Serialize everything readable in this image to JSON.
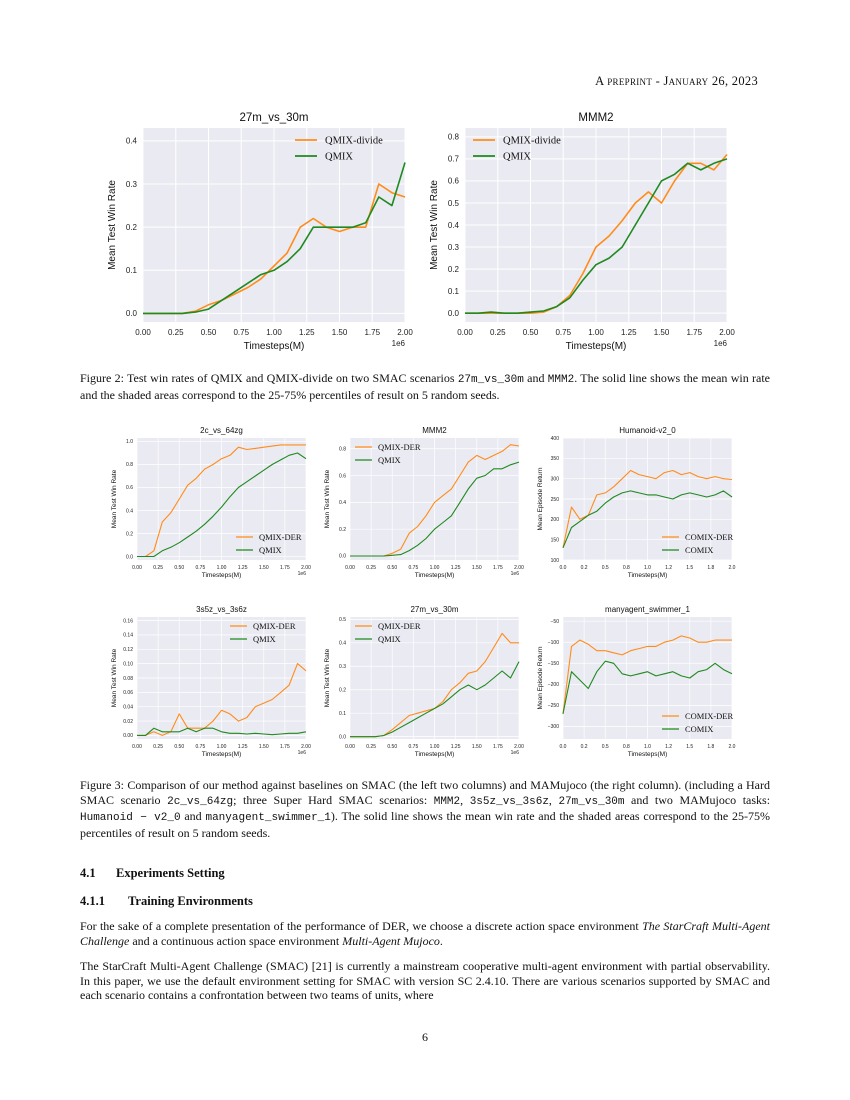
{
  "header": {
    "running_title": "A preprint - January 26, 2023"
  },
  "colors": {
    "plot_bg": "#eaeaf2",
    "grid": "#ffffff",
    "orange": "#ff8c1a",
    "green": "#1f8a1f"
  },
  "figure2": {
    "caption": [
      {
        "t": "Figure 2: Test win rates of QMIX and QMIX-divide on two SMAC scenarios "
      },
      {
        "t": "27m_vs_30m",
        "code": true
      },
      {
        "t": " and "
      },
      {
        "t": "MMM2",
        "code": true
      },
      {
        "t": ". The solid line shows the mean win rate and the shaded areas correspond to the 25-75% percentiles of result on 5 random seeds."
      }
    ]
  },
  "figure3": {
    "caption": [
      {
        "t": "Figure 3: Comparison of our method against baselines on SMAC (the left two columns) and MAMujoco (the right column). (including a Hard SMAC scenario "
      },
      {
        "t": "2c_vs_64zg",
        "code": true
      },
      {
        "t": "; three Super Hard SMAC scenarios: "
      },
      {
        "t": "MMM2",
        "code": true
      },
      {
        "t": ", "
      },
      {
        "t": "3s5z_vs_3s6z",
        "code": true
      },
      {
        "t": ", "
      },
      {
        "t": "27m_vs_30m",
        "code": true
      },
      {
        "t": " and two MAMujoco tasks: "
      },
      {
        "t": "Humanoid − v2_0",
        "code": true
      },
      {
        "t": " and "
      },
      {
        "t": "manyagent_swimmer_1",
        "code": true
      },
      {
        "t": "). The solid line shows the mean win rate and the shaded areas correspond to the 25-75% percentiles of result on 5 random seeds."
      }
    ]
  },
  "section": {
    "number": "4.1",
    "title": "Experiments Setting"
  },
  "subsection": {
    "number": "4.1.1",
    "title": "Training Environments"
  },
  "paragraphs": [
    [
      {
        "t": "For the sake of a complete presentation of the performance of DER, we choose a discrete action space environment "
      },
      {
        "t": "The StarCraft Multi-Agent Challenge",
        "em": true
      },
      {
        "t": " and a continuous action space environment "
      },
      {
        "t": "Multi-Agent Mujoco",
        "em": true
      },
      {
        "t": "."
      }
    ],
    [
      {
        "t": "The StarCraft Multi-Agent Challenge (SMAC) [21] is currently a mainstream cooperative multi-agent environment with partial observability. In this paper, we use the default environment setting for SMAC with version SC 2.4.10. There are various scenarios supported by SMAC and each scenario contains a confrontation between two teams of units, where"
      }
    ]
  ],
  "page_number": "6",
  "chart_data": [
    {
      "type": "line",
      "title": "27m_vs_30m",
      "xlabel": "Timesteps(M)",
      "ylabel": "Mean Test Win Rate",
      "x_offset_label": "1e6",
      "xlim": [
        0,
        2.0
      ],
      "ylim": [
        -0.02,
        0.43
      ],
      "xticks": [
        0,
        0.25,
        0.5,
        0.75,
        1.0,
        1.25,
        1.5,
        1.75,
        2.0
      ],
      "xticklabels": [
        "0.00",
        "0.25",
        "0.50",
        "0.75",
        "1.00",
        "1.25",
        "1.50",
        "1.75",
        "2.00"
      ],
      "yticks": [
        0,
        0.1,
        0.2,
        0.3,
        0.4
      ],
      "yticklabels": [
        "0.0",
        "0.1",
        "0.2",
        "0.3",
        "0.4"
      ],
      "grid": true,
      "legend": "top-right",
      "x": [
        0,
        0.1,
        0.2,
        0.3,
        0.4,
        0.5,
        0.6,
        0.7,
        0.8,
        0.9,
        1.0,
        1.1,
        1.2,
        1.3,
        1.4,
        1.5,
        1.6,
        1.7,
        1.8,
        1.9,
        2.0
      ],
      "series": [
        {
          "name": "QMIX-divide",
          "color": "orange",
          "values": [
            0,
            0,
            0,
            0,
            0.005,
            0.02,
            0.03,
            0.045,
            0.06,
            0.08,
            0.11,
            0.14,
            0.2,
            0.22,
            0.2,
            0.19,
            0.2,
            0.2,
            0.3,
            0.28,
            0.27
          ]
        },
        {
          "name": "QMIX",
          "color": "green",
          "values": [
            0,
            0,
            0,
            0,
            0.003,
            0.01,
            0.03,
            0.05,
            0.07,
            0.09,
            0.1,
            0.12,
            0.15,
            0.2,
            0.2,
            0.2,
            0.2,
            0.21,
            0.27,
            0.25,
            0.35
          ]
        }
      ]
    },
    {
      "type": "line",
      "title": "MMM2",
      "xlabel": "Timesteps(M)",
      "ylabel": "Mean Test Win Rate",
      "x_offset_label": "1e6",
      "xlim": [
        0,
        2.0
      ],
      "ylim": [
        -0.04,
        0.84
      ],
      "xticks": [
        0,
        0.25,
        0.5,
        0.75,
        1.0,
        1.25,
        1.5,
        1.75,
        2.0
      ],
      "xticklabels": [
        "0.00",
        "0.25",
        "0.50",
        "0.75",
        "1.00",
        "1.25",
        "1.50",
        "1.75",
        "2.00"
      ],
      "yticks": [
        0,
        0.1,
        0.2,
        0.3,
        0.4,
        0.5,
        0.6,
        0.7,
        0.8
      ],
      "yticklabels": [
        "0.0",
        "0.1",
        "0.2",
        "0.3",
        "0.4",
        "0.5",
        "0.6",
        "0.7",
        "0.8"
      ],
      "grid": true,
      "legend": "top-left",
      "x": [
        0,
        0.1,
        0.2,
        0.3,
        0.4,
        0.5,
        0.6,
        0.7,
        0.8,
        0.9,
        1.0,
        1.1,
        1.2,
        1.3,
        1.4,
        1.5,
        1.6,
        1.7,
        1.8,
        1.9,
        2.0
      ],
      "series": [
        {
          "name": "QMIX-divide",
          "color": "orange",
          "values": [
            0,
            0,
            0,
            0,
            0,
            0,
            0.005,
            0.03,
            0.08,
            0.18,
            0.3,
            0.35,
            0.42,
            0.5,
            0.55,
            0.5,
            0.6,
            0.68,
            0.68,
            0.65,
            0.72
          ]
        },
        {
          "name": "QMIX",
          "color": "green",
          "values": [
            0,
            0,
            0.005,
            0,
            0,
            0.005,
            0.01,
            0.03,
            0.07,
            0.15,
            0.22,
            0.25,
            0.3,
            0.4,
            0.5,
            0.6,
            0.63,
            0.68,
            0.65,
            0.68,
            0.7
          ]
        }
      ]
    },
    {
      "type": "line",
      "title": "2c_vs_64zg",
      "xlabel": "Timesteps(M)",
      "ylabel": "Mean Test Win Rate",
      "x_offset_label": "1e6",
      "xlim": [
        0,
        2.0
      ],
      "ylim": [
        -0.03,
        1.03
      ],
      "xticks": [
        0,
        0.25,
        0.5,
        0.75,
        1.0,
        1.25,
        1.5,
        1.75,
        2.0
      ],
      "xticklabels": [
        "0.00",
        "0.25",
        "0.50",
        "0.75",
        "1.00",
        "1.25",
        "1.50",
        "1.75",
        "2.00"
      ],
      "yticks": [
        0,
        0.2,
        0.4,
        0.6,
        0.8,
        1.0
      ],
      "yticklabels": [
        "0.0",
        "0.2",
        "0.4",
        "0.6",
        "0.8",
        "1.0"
      ],
      "grid": true,
      "legend": "bottom-right",
      "x": [
        0,
        0.1,
        0.2,
        0.3,
        0.4,
        0.5,
        0.6,
        0.7,
        0.8,
        0.9,
        1.0,
        1.1,
        1.2,
        1.3,
        1.4,
        1.5,
        1.6,
        1.7,
        1.8,
        1.9,
        2.0
      ],
      "series": [
        {
          "name": "QMIX-DER",
          "color": "orange",
          "values": [
            0,
            0,
            0.05,
            0.3,
            0.38,
            0.5,
            0.62,
            0.68,
            0.76,
            0.8,
            0.85,
            0.88,
            0.95,
            0.93,
            0.94,
            0.95,
            0.96,
            0.97,
            0.97,
            0.97,
            0.97
          ]
        },
        {
          "name": "QMIX",
          "color": "green",
          "values": [
            0,
            0,
            0,
            0.05,
            0.08,
            0.12,
            0.17,
            0.22,
            0.28,
            0.35,
            0.43,
            0.52,
            0.6,
            0.65,
            0.7,
            0.75,
            0.8,
            0.84,
            0.88,
            0.9,
            0.85
          ]
        }
      ]
    },
    {
      "type": "line",
      "title": "MMM2",
      "xlabel": "Timesteps(M)",
      "ylabel": "Mean Test Win Rate",
      "x_offset_label": "1e6",
      "xlim": [
        0,
        2.0
      ],
      "ylim": [
        -0.03,
        0.88
      ],
      "xticks": [
        0,
        0.25,
        0.5,
        0.75,
        1.0,
        1.25,
        1.5,
        1.75,
        2.0
      ],
      "xticklabels": [
        "0.00",
        "0.25",
        "0.50",
        "0.75",
        "1.00",
        "1.25",
        "1.50",
        "1.75",
        "2.00"
      ],
      "yticks": [
        0,
        0.2,
        0.4,
        0.6,
        0.8
      ],
      "yticklabels": [
        "0.0",
        "0.2",
        "0.4",
        "0.6",
        "0.8"
      ],
      "grid": true,
      "legend": "top-left",
      "x": [
        0,
        0.1,
        0.2,
        0.3,
        0.4,
        0.5,
        0.6,
        0.7,
        0.8,
        0.9,
        1.0,
        1.1,
        1.2,
        1.3,
        1.4,
        1.5,
        1.6,
        1.7,
        1.8,
        1.9,
        2.0
      ],
      "series": [
        {
          "name": "QMIX-DER",
          "color": "orange",
          "values": [
            0,
            0,
            0,
            0,
            0,
            0.02,
            0.05,
            0.17,
            0.22,
            0.3,
            0.4,
            0.45,
            0.5,
            0.6,
            0.7,
            0.75,
            0.72,
            0.75,
            0.78,
            0.83,
            0.82
          ]
        },
        {
          "name": "QMIX",
          "color": "green",
          "values": [
            0,
            0,
            0,
            0,
            0,
            0.005,
            0.01,
            0.04,
            0.08,
            0.13,
            0.2,
            0.25,
            0.3,
            0.4,
            0.5,
            0.58,
            0.6,
            0.65,
            0.65,
            0.68,
            0.7
          ]
        }
      ]
    },
    {
      "type": "line",
      "title": "Humanoid-v2_0",
      "xlabel": "Timesteps(M)",
      "ylabel": "Mean Episode Return",
      "x_offset_label": "",
      "xlim": [
        0,
        2.0
      ],
      "ylim": [
        100,
        400
      ],
      "xticks": [
        0,
        0.25,
        0.5,
        0.75,
        1.0,
        1.25,
        1.5,
        1.75,
        2.0
      ],
      "xticklabels": [
        "0.0",
        "0.2",
        "0.5",
        "0.8",
        "1.0",
        "1.2",
        "1.5",
        "1.8",
        "2.0"
      ],
      "yticks": [
        100,
        150,
        200,
        250,
        300,
        350,
        400
      ],
      "yticklabels": [
        "100",
        "150",
        "200",
        "250",
        "300",
        "350",
        "400"
      ],
      "grid": true,
      "legend": "bottom-right",
      "x": [
        0,
        0.1,
        0.2,
        0.3,
        0.4,
        0.5,
        0.6,
        0.7,
        0.8,
        0.9,
        1.0,
        1.1,
        1.2,
        1.3,
        1.4,
        1.5,
        1.6,
        1.7,
        1.8,
        1.9,
        2.0
      ],
      "series": [
        {
          "name": "COMIX-DER",
          "color": "orange",
          "values": [
            130,
            230,
            200,
            210,
            260,
            265,
            280,
            300,
            320,
            310,
            305,
            300,
            315,
            320,
            310,
            315,
            305,
            300,
            305,
            300,
            298
          ]
        },
        {
          "name": "COMIX",
          "color": "green",
          "values": [
            130,
            180,
            195,
            210,
            220,
            240,
            255,
            265,
            270,
            265,
            260,
            260,
            255,
            250,
            260,
            265,
            260,
            255,
            260,
            270,
            255
          ]
        }
      ]
    },
    {
      "type": "line",
      "title": "3s5z_vs_3s6z",
      "xlabel": "Timesteps(M)",
      "ylabel": "Mean Test Win Rate",
      "x_offset_label": "1e6",
      "xlim": [
        0,
        2.0
      ],
      "ylim": [
        -0.005,
        0.165
      ],
      "xticks": [
        0,
        0.25,
        0.5,
        0.75,
        1.0,
        1.25,
        1.5,
        1.75,
        2.0
      ],
      "xticklabels": [
        "0.00",
        "0.25",
        "0.50",
        "0.75",
        "1.00",
        "1.25",
        "1.50",
        "1.75",
        "2.00"
      ],
      "yticks": [
        0,
        0.02,
        0.04,
        0.06,
        0.08,
        0.1,
        0.12,
        0.14,
        0.16
      ],
      "yticklabels": [
        "0.00",
        "0.02",
        "0.04",
        "0.06",
        "0.08",
        "0.10",
        "0.12",
        "0.14",
        "0.16"
      ],
      "grid": true,
      "legend": "top-right",
      "x": [
        0,
        0.1,
        0.2,
        0.3,
        0.4,
        0.5,
        0.6,
        0.7,
        0.8,
        0.9,
        1.0,
        1.1,
        1.2,
        1.3,
        1.4,
        1.5,
        1.6,
        1.7,
        1.8,
        1.9,
        2.0
      ],
      "series": [
        {
          "name": "QMIX-DER",
          "color": "orange",
          "values": [
            0,
            0,
            0.005,
            0,
            0.005,
            0.03,
            0.01,
            0.01,
            0.01,
            0.02,
            0.035,
            0.03,
            0.02,
            0.025,
            0.04,
            0.045,
            0.05,
            0.06,
            0.07,
            0.1,
            0.09
          ]
        },
        {
          "name": "QMIX",
          "color": "green",
          "values": [
            0,
            0,
            0.01,
            0.005,
            0.005,
            0.005,
            0.01,
            0.005,
            0.01,
            0.01,
            0.005,
            0.003,
            0.003,
            0.002,
            0.003,
            0.002,
            0.001,
            0.002,
            0.003,
            0.003,
            0.005
          ]
        }
      ]
    },
    {
      "type": "line",
      "title": "27m_vs_30m",
      "xlabel": "Timesteps(M)",
      "ylabel": "Mean Test Win Rate",
      "x_offset_label": "1e6",
      "xlim": [
        0,
        2.0
      ],
      "ylim": [
        -0.01,
        0.51
      ],
      "xticks": [
        0,
        0.25,
        0.5,
        0.75,
        1.0,
        1.25,
        1.5,
        1.75,
        2.0
      ],
      "xticklabels": [
        "0.00",
        "0.25",
        "0.50",
        "0.75",
        "1.00",
        "1.25",
        "1.50",
        "1.75",
        "2.00"
      ],
      "yticks": [
        0,
        0.1,
        0.2,
        0.3,
        0.4,
        0.5
      ],
      "yticklabels": [
        "0.0",
        "0.1",
        "0.2",
        "0.3",
        "0.4",
        "0.5"
      ],
      "grid": true,
      "legend": "top-left",
      "x": [
        0,
        0.1,
        0.2,
        0.3,
        0.4,
        0.5,
        0.6,
        0.7,
        0.8,
        0.9,
        1.0,
        1.1,
        1.2,
        1.3,
        1.4,
        1.5,
        1.6,
        1.7,
        1.8,
        1.9,
        2.0
      ],
      "series": [
        {
          "name": "QMIX-DER",
          "color": "orange",
          "values": [
            0,
            0,
            0,
            0,
            0.005,
            0.03,
            0.06,
            0.09,
            0.1,
            0.11,
            0.12,
            0.15,
            0.2,
            0.23,
            0.27,
            0.28,
            0.32,
            0.38,
            0.44,
            0.4,
            0.4
          ]
        },
        {
          "name": "QMIX",
          "color": "green",
          "values": [
            0,
            0,
            0,
            0,
            0.005,
            0.02,
            0.04,
            0.06,
            0.08,
            0.1,
            0.12,
            0.14,
            0.17,
            0.2,
            0.22,
            0.2,
            0.22,
            0.25,
            0.28,
            0.25,
            0.32
          ]
        }
      ]
    },
    {
      "type": "line",
      "title": "manyagent_swimmer_1",
      "xlabel": "Timesteps(M)",
      "ylabel": "Mean Episode Return",
      "x_offset_label": "",
      "xlim": [
        0,
        2.0
      ],
      "ylim": [
        -330,
        -40
      ],
      "xticks": [
        0,
        0.25,
        0.5,
        0.75,
        1.0,
        1.25,
        1.5,
        1.75,
        2.0
      ],
      "xticklabels": [
        "0.0",
        "0.2",
        "0.5",
        "0.8",
        "1.0",
        "1.2",
        "1.5",
        "1.8",
        "2.0"
      ],
      "yticks": [
        -300,
        -250,
        -200,
        -150,
        -100,
        -50
      ],
      "yticklabels": [
        "−300",
        "−250",
        "−200",
        "−150",
        "−100",
        "−50"
      ],
      "grid": true,
      "legend": "bottom-right",
      "x": [
        0,
        0.1,
        0.2,
        0.3,
        0.4,
        0.5,
        0.6,
        0.7,
        0.8,
        0.9,
        1.0,
        1.1,
        1.2,
        1.3,
        1.4,
        1.5,
        1.6,
        1.7,
        1.8,
        1.9,
        2.0
      ],
      "series": [
        {
          "name": "COMIX-DER",
          "color": "orange",
          "values": [
            -270,
            -110,
            -95,
            -105,
            -120,
            -120,
            -125,
            -130,
            -120,
            -115,
            -110,
            -110,
            -100,
            -95,
            -85,
            -90,
            -100,
            -100,
            -95,
            -95,
            -95
          ]
        },
        {
          "name": "COMIX",
          "color": "green",
          "values": [
            -270,
            -170,
            -190,
            -210,
            -170,
            -145,
            -150,
            -175,
            -180,
            -175,
            -170,
            -180,
            -175,
            -170,
            -180,
            -185,
            -170,
            -165,
            -150,
            -165,
            -175
          ]
        }
      ]
    }
  ]
}
